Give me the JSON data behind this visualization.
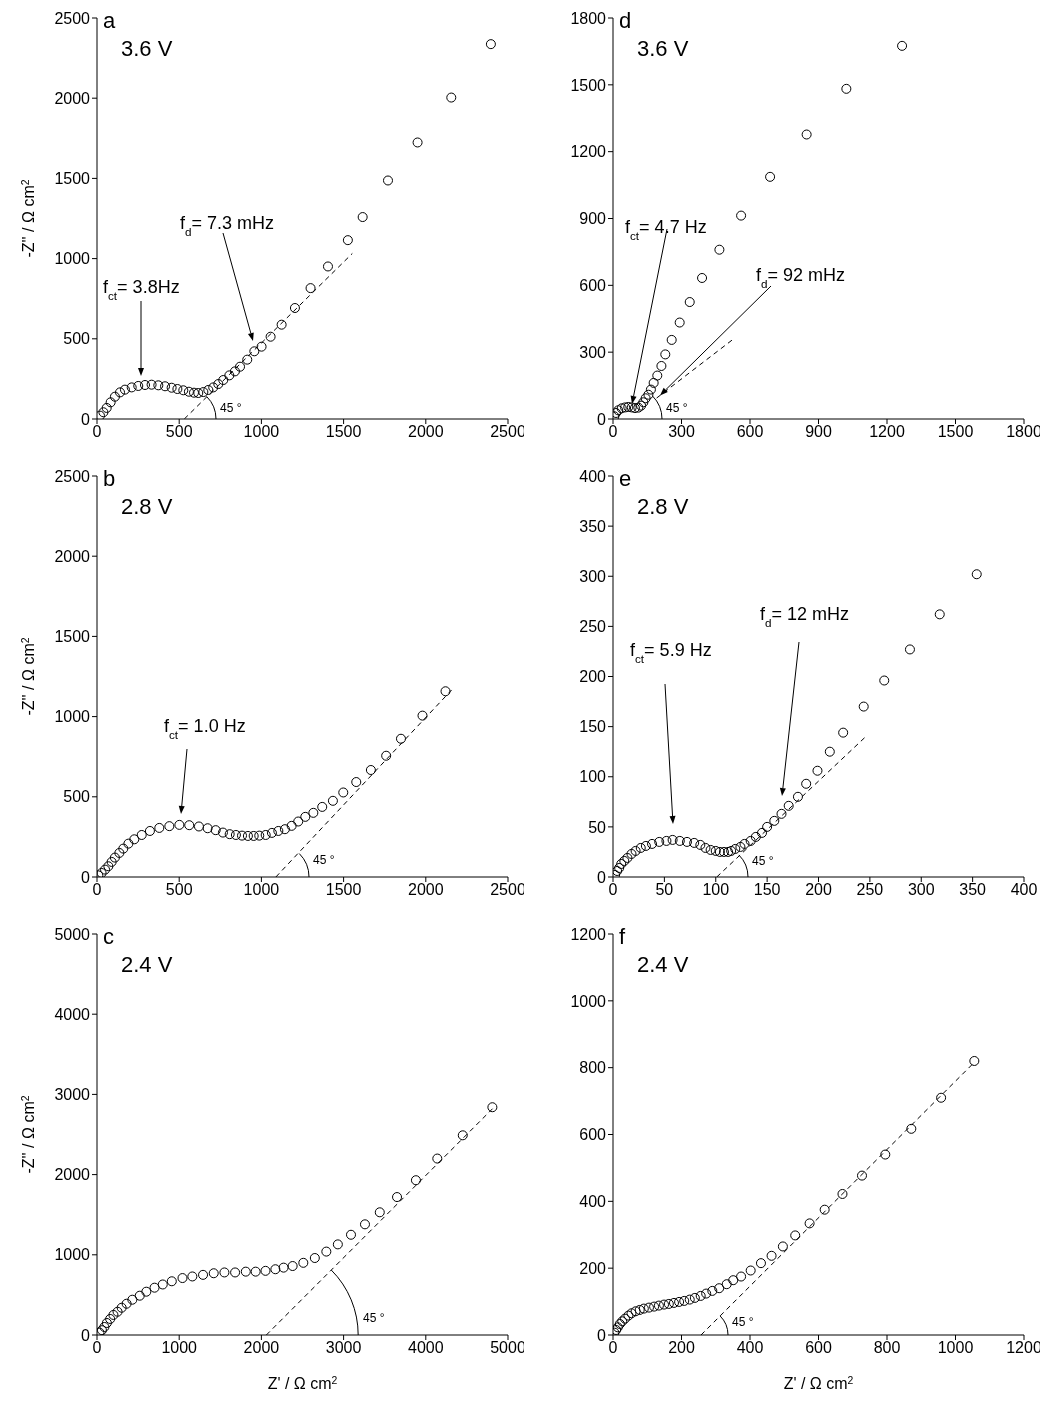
{
  "chart_data": [
    {
      "type": "scatter",
      "title": "a",
      "subtitle": "3.6 V",
      "ylabel": "-Z'' / Ω cm$^{2}$",
      "xlim": [
        0,
        2500
      ],
      "ylim": [
        0,
        2500
      ],
      "xticks": [
        0,
        500,
        1000,
        1500,
        2000,
        2500
      ],
      "yticks": [
        0,
        500,
        1000,
        1500,
        2000,
        2500
      ],
      "annotations": [
        "f$_{ct}$= 3.8Hz",
        "f$_{d}$= 7.3 mHz",
        "45 °"
      ],
      "series": [
        {
          "type": "scatter",
          "marker": "circle",
          "color": "#000000",
          "x": [
            18,
            39,
            59,
            83,
            109,
            140,
            170,
            211,
            251,
            292,
            332,
            373,
            414,
            454,
            489,
            525,
            559,
            590,
            616,
            647,
            677,
            707,
            738,
            768,
            805,
            839,
            870,
            914,
            957,
            1001,
            1056,
            1123,
            1204,
            1299,
            1405,
            1526,
            1616,
            1770,
            1950,
            2155,
            2396
          ],
          "values": [
            21,
            42,
            69,
            104,
            139,
            166,
            183,
            197,
            206,
            212,
            214,
            210,
            204,
            195,
            187,
            179,
            170,
            164,
            162,
            168,
            181,
            197,
            218,
            243,
            272,
            297,
            326,
            370,
            422,
            451,
            513,
            588,
            692,
            816,
            951,
            1115,
            1259,
            1487,
            1724,
            2004,
            2337
          ]
        },
        {
          "type": "line",
          "marker": "none",
          "line_style": "dashed",
          "color": "#000000",
          "x": [
            531,
            1553
          ],
          "values": [
            0,
            1032
          ]
        }
      ]
    },
    {
      "type": "scatter",
      "title": "d",
      "subtitle": "3.6 V",
      "xlim": [
        0,
        1800
      ],
      "ylim": [
        0,
        1800
      ],
      "xticks": [
        0,
        300,
        600,
        900,
        1200,
        1500,
        1800
      ],
      "yticks": [
        0,
        300,
        600,
        900,
        1200,
        1500,
        1800
      ],
      "annotations": [
        "f$_{ct}$= 4.7  Hz",
        {
          "text": "f$_{d}$= 92  mHz",
          "x": 206,
          "y": 106
        },
        "45 °"
      ],
      "series": [
        {
          "type": "scatter",
          "marker": "circle",
          "color": "#000000",
          "x": [
            6,
            13,
            23,
            38,
            53,
            67,
            82,
            96,
            111,
            123,
            133,
            143,
            155,
            166,
            178,
            194,
            212,
            229,
            257,
            292,
            336,
            390,
            466,
            561,
            688,
            848,
            1022,
            1266
          ],
          "values": [
            12,
            27,
            39,
            48,
            52,
            54,
            52,
            49,
            51,
            60,
            75,
            93,
            109,
            132,
            162,
            195,
            238,
            290,
            355,
            433,
            525,
            633,
            760,
            913,
            1087,
            1277,
            1482,
            1675
          ]
        },
        {
          "type": "line",
          "marker": "none",
          "line_style": "dashed",
          "color": "#000000",
          "x": [
            191,
            530
          ],
          "values": [
            94,
            361
          ]
        }
      ]
    },
    {
      "type": "scatter",
      "title": "b",
      "subtitle": "2.8 V",
      "ylabel": "-Z'' / Ω cm$^{2}$",
      "xlim": [
        0,
        2500
      ],
      "ylim": [
        0,
        2500
      ],
      "xticks": [
        0,
        500,
        1000,
        1500,
        2000,
        2500
      ],
      "yticks": [
        0,
        500,
        1000,
        1500,
        2000,
        2500
      ],
      "annotations": [
        "f$_{ct}$= 1.0  Hz",
        "45 °"
      ],
      "series": [
        {
          "type": "scatter",
          "marker": "circle",
          "color": "#000000",
          "x": [
            8,
            28,
            49,
            69,
            89,
            109,
            136,
            160,
            191,
            227,
            272,
            322,
            379,
            440,
            501,
            561,
            620,
            673,
            722,
            766,
            807,
            845,
            882,
            918,
            953,
            987,
            1026,
            1064,
            1103,
            1143,
            1184,
            1224,
            1267,
            1316,
            1370,
            1435,
            1498,
            1577,
            1666,
            1759,
            1849,
            1980,
            2120
          ],
          "values": [
            10,
            25,
            46,
            67,
            94,
            121,
            150,
            177,
            208,
            235,
            262,
            287,
            306,
            317,
            325,
            323,
            315,
            304,
            292,
            277,
            267,
            262,
            258,
            256,
            256,
            258,
            262,
            275,
            287,
            298,
            319,
            346,
            375,
            400,
            437,
            475,
            527,
            592,
            667,
            756,
            862,
            1006,
            1158
          ]
        },
        {
          "type": "line",
          "marker": "none",
          "line_style": "dashed",
          "color": "#000000",
          "x": [
            1088,
            2157
          ],
          "values": [
            0,
            1166
          ]
        }
      ]
    },
    {
      "type": "scatter",
      "title": "e",
      "subtitle": "2.8 V",
      "xlim": [
        0,
        400
      ],
      "ylim": [
        0,
        400
      ],
      "xticks": [
        0,
        50,
        100,
        150,
        200,
        250,
        300,
        350,
        400
      ],
      "yticks": [
        0,
        50,
        100,
        150,
        200,
        250,
        300,
        350,
        400
      ],
      "annotations": [
        "f$_{ct}$= 5.9 Hz",
        "f$_{d}$= 12 mHz",
        "45 °"
      ],
      "series": [
        {
          "type": "scatter",
          "marker": "circle",
          "color": "#000000",
          "x": [
            2,
            4,
            6,
            8,
            11,
            14,
            18,
            22,
            27,
            32,
            38,
            45,
            52,
            58,
            65,
            72,
            79,
            85,
            90,
            95,
            100,
            104,
            108,
            112,
            115,
            119,
            124,
            128,
            134,
            139,
            145,
            150,
            157,
            164,
            171,
            180,
            188,
            199,
            211,
            224,
            244,
            264,
            289,
            318,
            354
          ],
          "values": [
            2,
            6,
            9,
            13,
            16,
            19,
            23,
            26,
            29,
            31,
            33,
            35,
            36,
            37,
            36,
            35,
            34,
            32,
            29,
            27,
            26,
            25,
            25,
            25,
            26,
            28,
            30,
            33,
            36,
            40,
            44,
            50,
            56,
            63,
            71,
            80,
            93,
            106,
            125,
            144,
            170,
            196,
            227,
            262,
            302
          ]
        },
        {
          "type": "line",
          "marker": "none",
          "line_style": "dashed",
          "color": "#000000",
          "x": [
            101,
            247
          ],
          "values": [
            0,
            141
          ]
        }
      ]
    },
    {
      "type": "scatter",
      "title": "c",
      "subtitle": "2.4 V",
      "ylabel": "-Z'' / Ω cm$^{2}$",
      "xlabel": "Z' / Ω cm$^{2}$",
      "xlim": [
        0,
        5000
      ],
      "ylim": [
        0,
        5000
      ],
      "xticks": [
        0,
        1000,
        2000,
        3000,
        4000,
        5000
      ],
      "yticks": [
        0,
        1000,
        2000,
        3000,
        4000,
        5000
      ],
      "annotations": [
        {
          "text": "45 °",
          "x": 2850,
          "y": 810
        }
      ],
      "series": [
        {
          "type": "scatter",
          "marker": "circle",
          "color": "#000000",
          "x": [
            30,
            60,
            90,
            120,
            160,
            200,
            250,
            300,
            360,
            430,
            520,
            600,
            700,
            800,
            910,
            1040,
            1160,
            1290,
            1420,
            1550,
            1680,
            1810,
            1930,
            2050,
            2170,
            2270,
            2380,
            2510,
            2650,
            2790,
            2930,
            3090,
            3260,
            3440,
            3650,
            3880,
            4140,
            4450,
            4810
          ],
          "values": [
            30,
            60,
            100,
            150,
            200,
            250,
            290,
            340,
            390,
            440,
            490,
            540,
            590,
            630,
            670,
            710,
            730,
            750,
            770,
            780,
            780,
            790,
            790,
            800,
            820,
            840,
            860,
            900,
            960,
            1040,
            1130,
            1250,
            1380,
            1530,
            1720,
            1930,
            2200,
            2490,
            2840
          ]
        },
        {
          "type": "line",
          "marker": "none",
          "line_style": "dashed",
          "color": "#000000",
          "x": [
            2060,
            4830
          ],
          "values": [
            0,
            2840
          ]
        }
      ]
    },
    {
      "type": "scatter",
      "title": "f",
      "subtitle": "2.4 V",
      "xlabel": "Z' / Ω cm$^{2}$",
      "xlim": [
        0,
        1200
      ],
      "ylim": [
        0,
        1200
      ],
      "xticks": [
        0,
        200,
        400,
        600,
        800,
        1000,
        1200
      ],
      "yticks": [
        0,
        200,
        400,
        600,
        800,
        1000,
        1200
      ],
      "annotations": [
        "45 °"
      ],
      "series": [
        {
          "type": "scatter",
          "marker": "circle",
          "color": "#000000",
          "x": [
            4,
            9,
            14,
            20,
            27,
            35,
            45,
            54,
            66,
            78,
            90,
            105,
            120,
            134,
            149,
            163,
            178,
            193,
            208,
            224,
            239,
            256,
            272,
            290,
            310,
            332,
            351,
            374,
            402,
            432,
            463,
            496,
            532,
            574,
            618,
            670,
            727,
            795,
            871,
            958,
            1055
          ],
          "values": [
            7,
            15,
            23,
            33,
            41,
            49,
            58,
            65,
            71,
            75,
            79,
            82,
            85,
            88,
            91,
            93,
            96,
            99,
            102,
            106,
            111,
            117,
            124,
            132,
            140,
            152,
            164,
            175,
            193,
            215,
            237,
            265,
            298,
            334,
            375,
            422,
            477,
            540,
            617,
            710,
            820
          ]
        },
        {
          "type": "line",
          "marker": "none",
          "line_style": "dashed",
          "color": "#000000",
          "x": [
            257,
            1057
          ],
          "values": [
            0,
            818
          ]
        }
      ]
    }
  ]
}
